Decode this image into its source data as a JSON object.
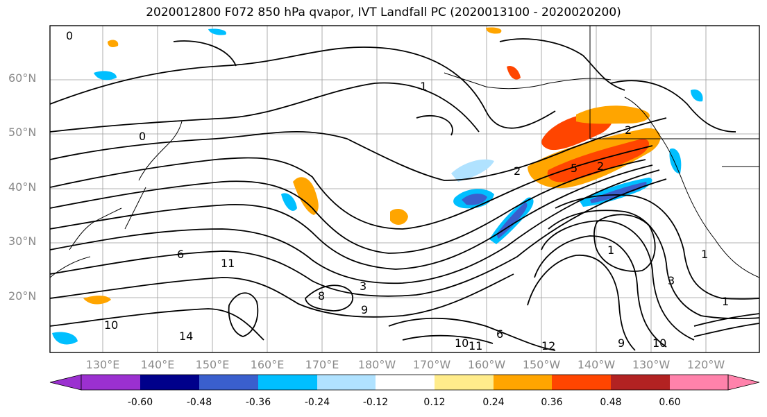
{
  "title": "2020012800 F072 850 hPa qvapor, IVT Landfall PC (2020013100 - 2020020200)",
  "lat_labels": [
    "60°N",
    "50°N",
    "40°N",
    "30°N",
    "20°N"
  ],
  "lon_labels": [
    "130°E",
    "140°E",
    "150°E",
    "160°E",
    "170°E",
    "180°W",
    "170°W",
    "160°W",
    "150°W",
    "140°W",
    "130°W",
    "120°W"
  ],
  "colorbar": {
    "ticks": [
      "-0.60",
      "-0.48",
      "-0.36",
      "-0.24",
      "-0.12",
      "0.12",
      "0.24",
      "0.36",
      "0.48",
      "0.60"
    ],
    "colors": [
      "#9b30d0",
      "#00008b",
      "#3a5fcd",
      "#00bfff",
      "#b0e2ff",
      "#ffffff",
      "#ffec8b",
      "#ffa500",
      "#ff4500",
      "#b22222",
      "#ff82ab"
    ]
  },
  "contour_labels": [
    "1",
    "2",
    "2",
    "2",
    "3",
    "3",
    "5",
    "6",
    "6",
    "8",
    "9",
    "9",
    "10",
    "10",
    "10",
    "11",
    "11",
    "12",
    "14",
    "1",
    "1",
    "1",
    "0",
    "0"
  ],
  "icons": {
    "coastline": "coastline-lines",
    "graticule": "grid-lines"
  }
}
